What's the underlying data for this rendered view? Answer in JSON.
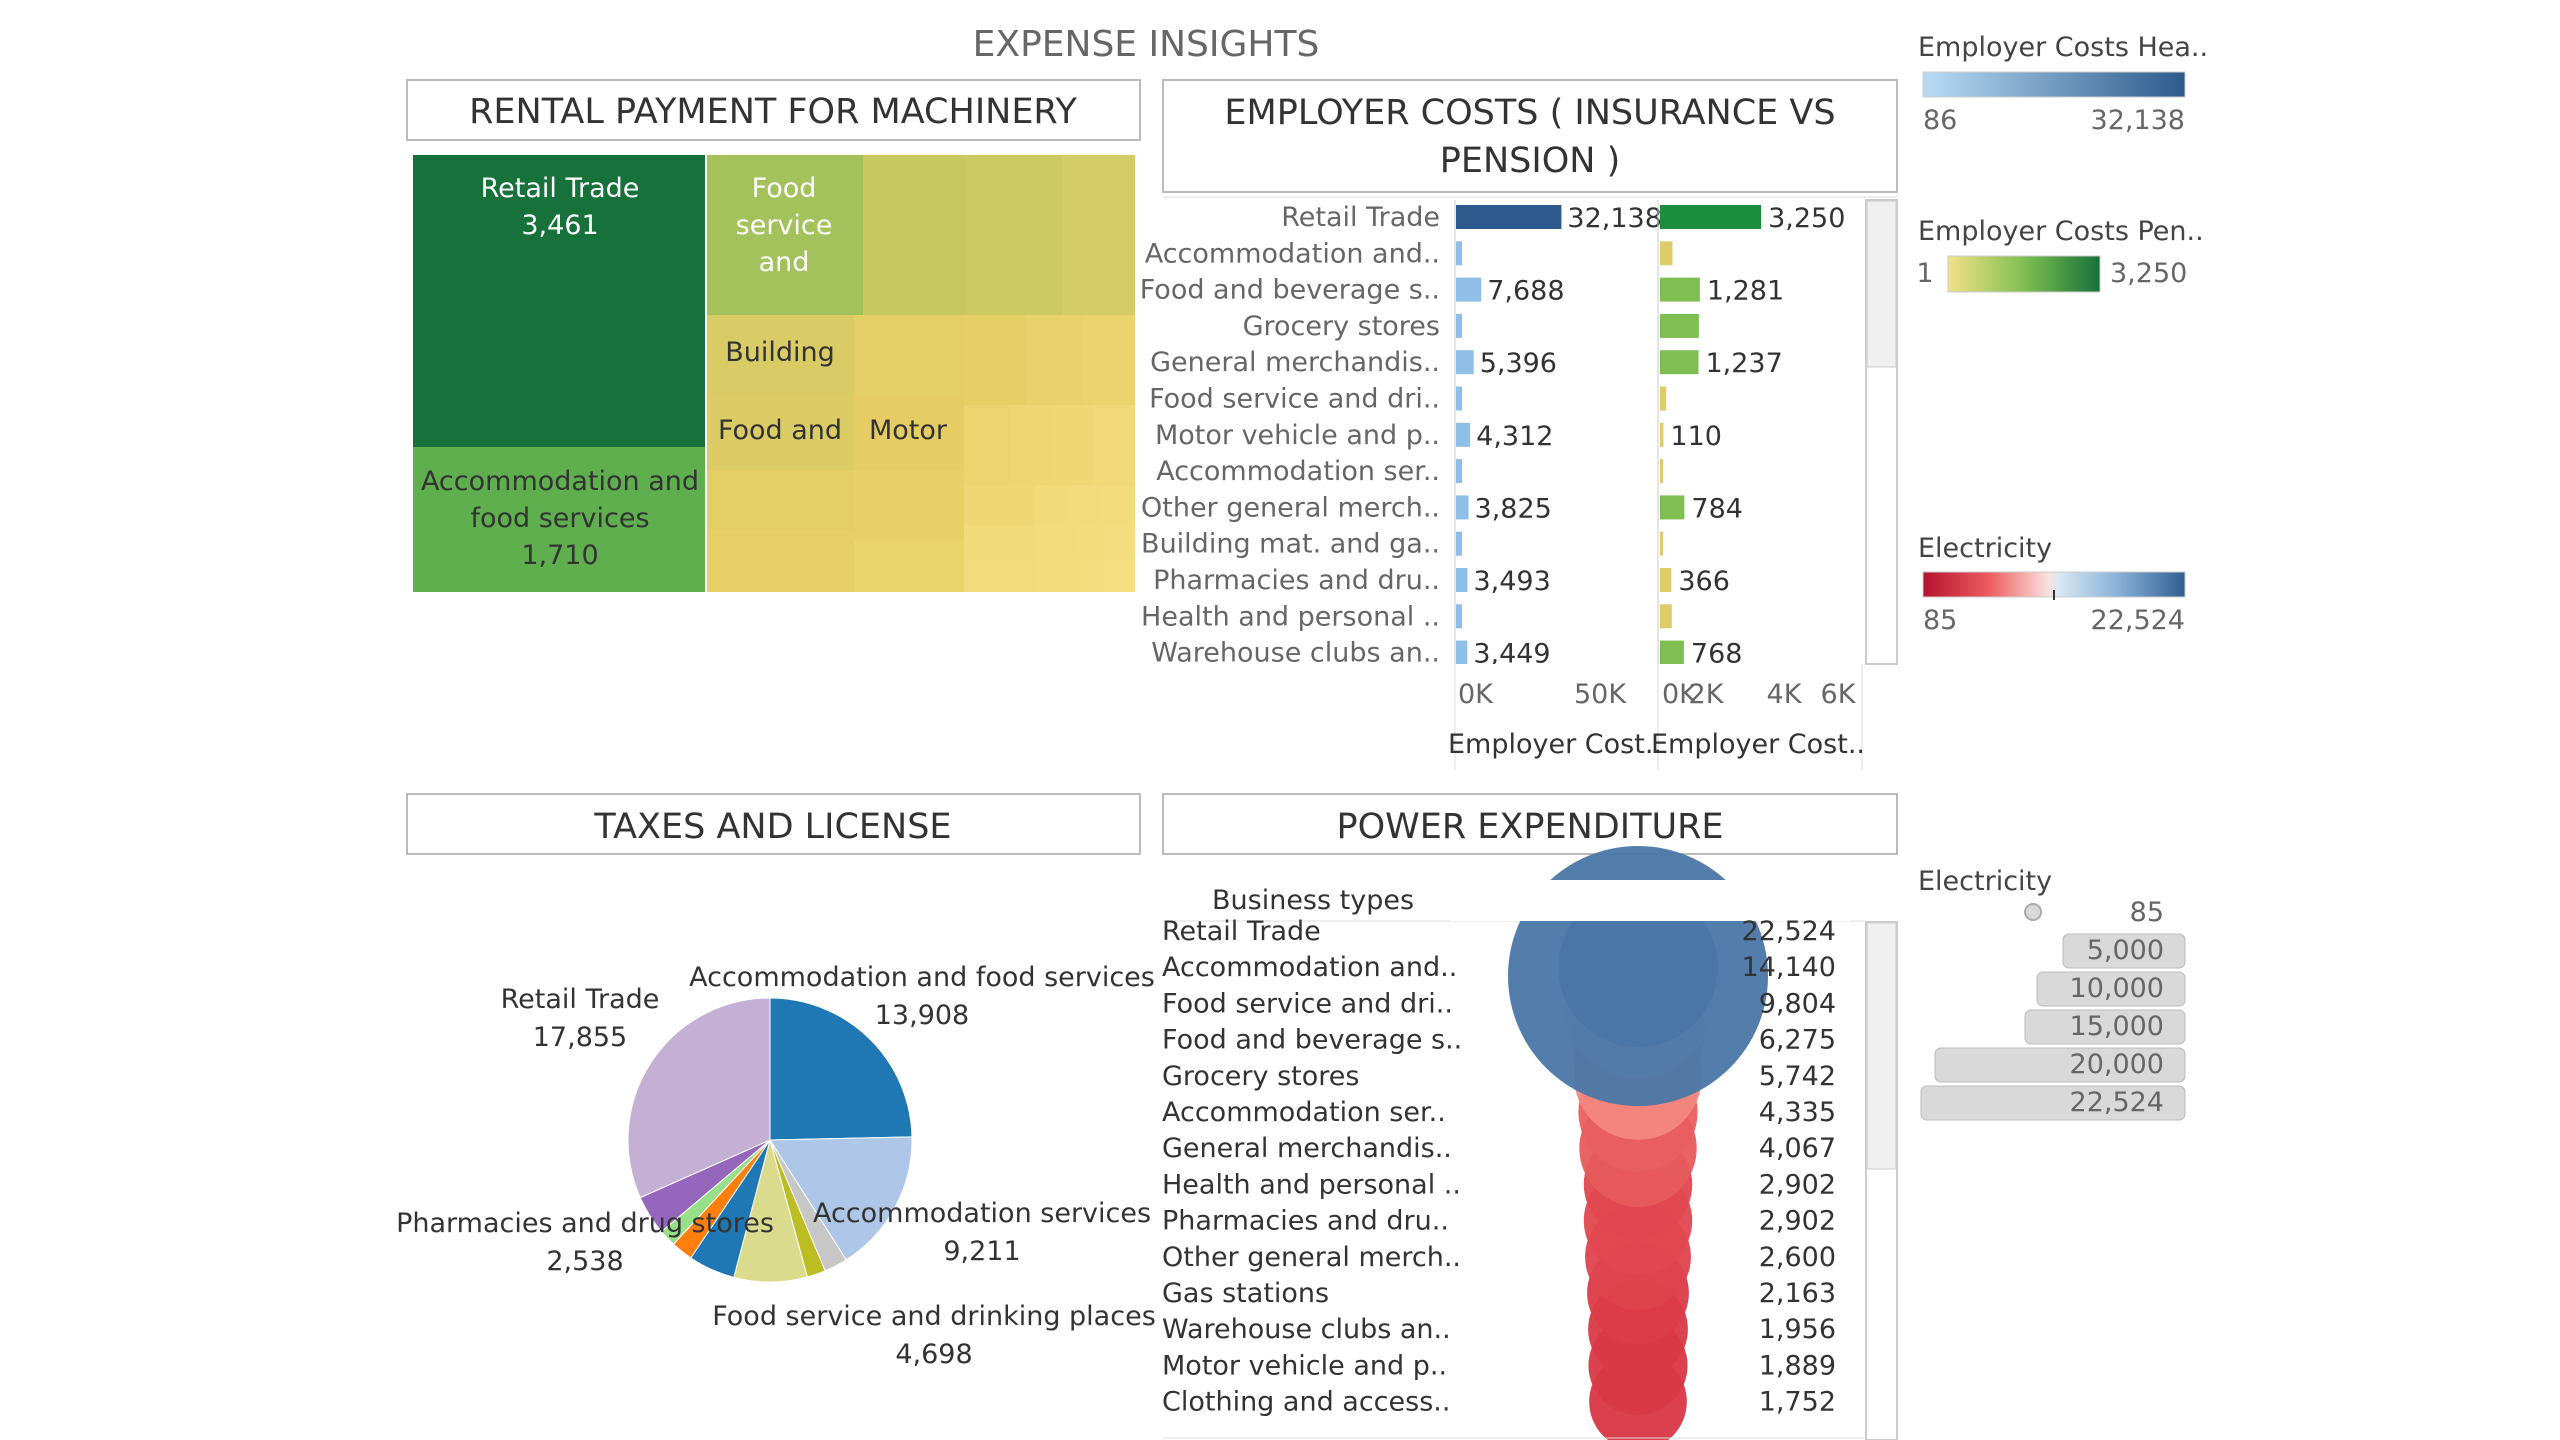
{
  "dashboard": {
    "title": "EXPENSE INSIGHTS"
  },
  "colors": {
    "tree_dark": "#16713a",
    "tree_mid": "#5faf4f",
    "tree_light": "#a3c25c",
    "tree_olive": "#c7c85f",
    "tree_yellow": "#e7cf63",
    "bar_blue_dark": "#2c5a8c",
    "bar_blue_light": "#8fbfe6",
    "bar_green_dark": "#1c8e3d",
    "bar_green_mid": "#7fbf52",
    "bar_yellow": "#dfcb69",
    "power_blue": "#4a77a8",
    "power_red": "#d73242",
    "legend_grey": "#d9d9d9"
  },
  "legends": {
    "health": {
      "title": "Employer Costs Hea..",
      "min": "86",
      "max": "32,138"
    },
    "pension": {
      "title": "Employer Costs Pen..",
      "min": "1",
      "max": "3,250"
    },
    "electricity_color": {
      "title": "Electricity",
      "min": "85",
      "max": "22,524"
    },
    "electricity_size": {
      "title": "Electricity",
      "values": [
        "85",
        "5,000",
        "10,000",
        "15,000",
        "20,000",
        "22,524"
      ]
    }
  },
  "chart_data": [
    {
      "type": "treemap",
      "title": "RENTAL PAYMENT FOR MACHINERY",
      "labeled": [
        {
          "name": "Retail Trade",
          "value": 3461,
          "display_name": "Retail Trade",
          "display_value": "3,461"
        },
        {
          "name": "Accommodation and food services",
          "value": 1710,
          "display_name_lines": [
            "Accommodation and",
            "food services"
          ],
          "display_value": "1,710"
        },
        {
          "name": "Food service and",
          "display_name_lines": [
            "Food",
            "service",
            "and"
          ]
        },
        {
          "name": "Building",
          "display_name": "Building"
        },
        {
          "name": "Food and",
          "display_name": "Food and"
        },
        {
          "name": "Motor",
          "display_name": "Motor"
        }
      ]
    },
    {
      "type": "bar",
      "title": "EMPLOYER COSTS ( INSURANCE VS PENSION )",
      "categories": [
        "Retail Trade",
        "Accommodation and..",
        "Food and beverage s..",
        "Grocery stores",
        "General merchandis..",
        "Food service and dri..",
        "Motor vehicle and p..",
        "Accommodation ser..",
        "Other general merch..",
        "Building mat. and ga..",
        "Pharmacies and dru..",
        "Health and personal ..",
        "Warehouse clubs an.."
      ],
      "series": [
        {
          "name": "Employer Cost..",
          "values": [
            32138,
            1300,
            7688,
            900,
            5396,
            700,
            4312,
            600,
            3825,
            400,
            3493,
            500,
            3449
          ],
          "labels": [
            "32,138",
            "",
            "7,688",
            "",
            "5,396",
            "",
            "4,312",
            "",
            "3,825",
            "",
            "3,493",
            "",
            "3,449"
          ],
          "xlim": [
            0,
            75000
          ],
          "ticks": [
            "0K",
            "50K"
          ]
        },
        {
          "name": "Employer Cost..",
          "values": [
            3250,
            400,
            1281,
            1250,
            1237,
            200,
            110,
            100,
            784,
            60,
            366,
            380,
            768
          ],
          "labels": [
            "3,250",
            "",
            "1,281",
            "",
            "1,237",
            "",
            "110",
            "",
            "784",
            "",
            "366",
            "",
            "768"
          ],
          "xlim": [
            0,
            6300
          ],
          "ticks": [
            "0K",
            "2K",
            "4K",
            "6K"
          ]
        }
      ]
    },
    {
      "type": "pie",
      "title": "TAXES AND LICENSE",
      "slices": [
        {
          "name": "Accommodation and food services",
          "value": 13908,
          "label": "13,908",
          "color": "#1f77b4"
        },
        {
          "name": "Accommodation services",
          "value": 9211,
          "label": "9,211",
          "color": "#aec7e8"
        },
        {
          "name": "",
          "value": 1500,
          "color": "#c7c7c7"
        },
        {
          "name": "",
          "value": 1200,
          "color": "#bcbd22"
        },
        {
          "name": "Food service and drinking places",
          "value": 4698,
          "label": "4,698",
          "color": "#dbdb8d"
        },
        {
          "name": "",
          "value": 3000,
          "color": "#1f77b4"
        },
        {
          "name": "",
          "value": 1400,
          "color": "#ff7f0e"
        },
        {
          "name": "",
          "value": 1100,
          "color": "#98df8a"
        },
        {
          "name": "Pharmacies and drug stores",
          "value": 2538,
          "label": "2,538",
          "color": "#9467bd"
        },
        {
          "name": "Retail Trade",
          "value": 17855,
          "label": "17,855",
          "color": "#c5b0d5"
        }
      ]
    },
    {
      "type": "bubble",
      "title": "POWER EXPENDITURE",
      "header": "Business types",
      "categories": [
        "Retail Trade",
        "Accommodation and..",
        "Food service and dri..",
        "Food and beverage s..",
        "Grocery stores",
        "Accommodation ser..",
        "General merchandis..",
        "Health and personal ..",
        "Pharmacies and dru..",
        "Other general merch..",
        "Gas stations",
        "Warehouse clubs an..",
        "Motor vehicle and p..",
        "Clothing and access.."
      ],
      "values": [
        22524,
        14140,
        9804,
        6275,
        5742,
        4335,
        4067,
        2902,
        2902,
        2600,
        2163,
        1956,
        1889,
        1752
      ],
      "labels": [
        "22,524",
        "14,140",
        "9,804",
        "6,275",
        "5,742",
        "4,335",
        "4,067",
        "2,902",
        "2,902",
        "2,600",
        "2,163",
        "1,956",
        "1,889",
        "1,752"
      ]
    }
  ]
}
